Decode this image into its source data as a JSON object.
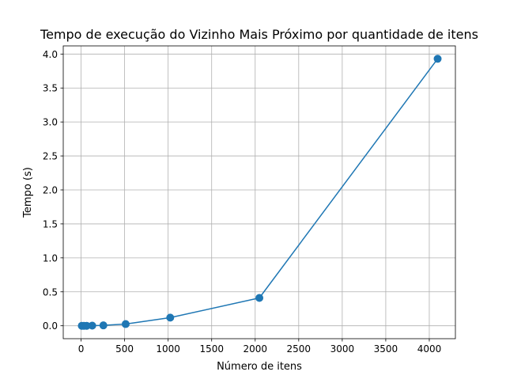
{
  "chart_data": {
    "type": "line",
    "title": "Tempo de execução do Vizinho Mais Próximo por quantidade de itens",
    "xlabel": "Número de itens",
    "ylabel": "Tempo (s)",
    "xlim": [
      -205,
      4300
    ],
    "ylim": [
      -0.19,
      4.12
    ],
    "xticks": [
      0,
      500,
      1000,
      1500,
      2000,
      2500,
      3000,
      3500,
      4000
    ],
    "yticks": [
      0.0,
      0.5,
      1.0,
      1.5,
      2.0,
      2.5,
      3.0,
      3.5,
      4.0
    ],
    "xtick_labels": [
      "0",
      "500",
      "1000",
      "1500",
      "2000",
      "2500",
      "3000",
      "3500",
      "4000"
    ],
    "ytick_labels": [
      "0.0",
      "0.5",
      "1.0",
      "1.5",
      "2.0",
      "2.5",
      "3.0",
      "3.5",
      "4.0"
    ],
    "grid": true,
    "series": [
      {
        "color": "#1f77b4",
        "marker": "circle",
        "x": [
          8,
          32,
          64,
          128,
          256,
          512,
          1024,
          2048,
          4096
        ],
        "y": [
          0.0,
          0.0,
          0.0,
          0.002,
          0.006,
          0.025,
          0.12,
          0.41,
          3.93
        ]
      }
    ]
  }
}
